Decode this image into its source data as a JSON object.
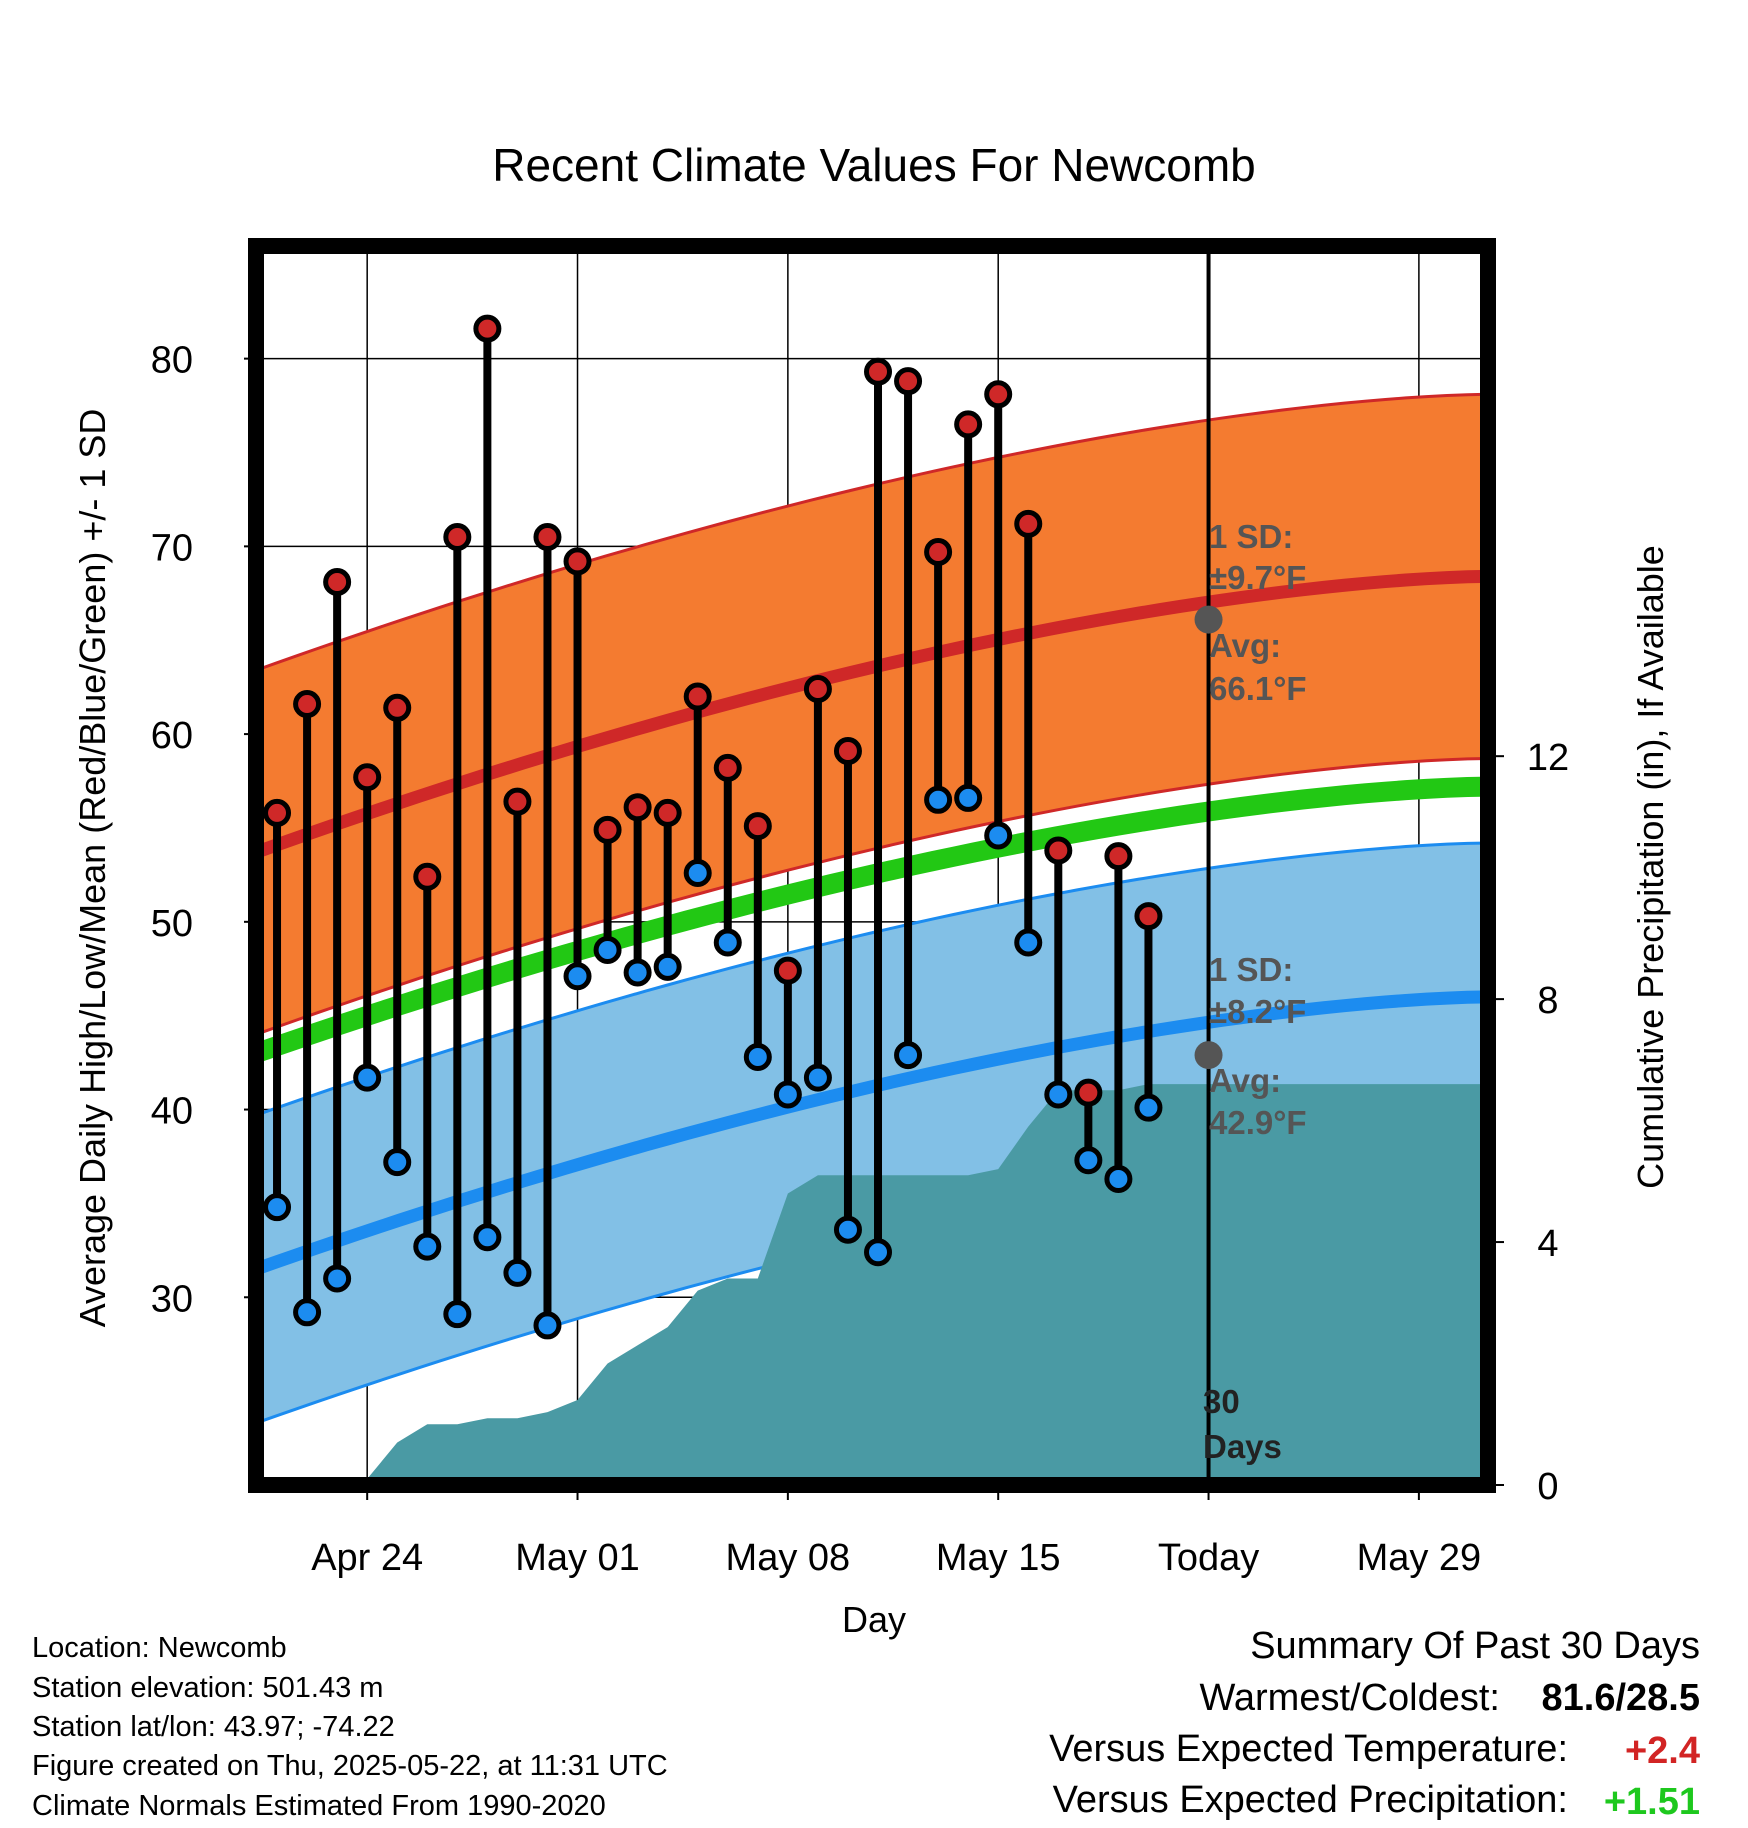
{
  "chart_data": {
    "type": "line",
    "title": "Recent Climate Values For Newcomb",
    "xlabel": "Day",
    "ylabel_left": "Average Daily High/Low/Mean (Red/Blue/Green) +/- 1 SD",
    "ylabel_right": "Cumulative Precipitation (in), If Available",
    "ylim_left": [
      20,
      86
    ],
    "ylim_right": [
      0,
      20.4
    ],
    "left_ticks": [
      30,
      40,
      50,
      60,
      70,
      80
    ],
    "right_ticks": [
      0,
      4,
      8,
      12
    ],
    "x_ticks": [
      {
        "day": 3,
        "label": "Apr 24"
      },
      {
        "day": 10,
        "label": "May 01"
      },
      {
        "day": 17,
        "label": "May 08"
      },
      {
        "day": 24,
        "label": "May 15"
      },
      {
        "day": 31,
        "label": "Today"
      },
      {
        "day": 38,
        "label": "May 29"
      }
    ],
    "x_range": [
      -0.7,
      40.3
    ],
    "today_day": 31,
    "today_label": "30\nDays",
    "normal_high": {
      "start": 53.7,
      "end": 68.4,
      "sd": 9.7,
      "today_avg": 66.1,
      "sd_label": "1 SD:",
      "sd_text": "±9.7°F",
      "avg_label": "Avg:",
      "avg_text": "66.1°F"
    },
    "normal_low": {
      "start": 31.5,
      "end": 46.0,
      "sd": 8.2,
      "today_avg": 42.9,
      "sd_label": "1 SD:",
      "sd_text": "±8.2°F",
      "avg_label": "Avg:",
      "avg_text": "42.9°F"
    },
    "normal_mean": {
      "start": 43.0,
      "end": 57.2
    },
    "daily": [
      {
        "day": 0,
        "high": 55.8,
        "low": 34.8
      },
      {
        "day": 1,
        "high": 61.6,
        "low": 29.2
      },
      {
        "day": 2,
        "high": 68.1,
        "low": 31.0
      },
      {
        "day": 3,
        "high": 57.7,
        "low": 41.7
      },
      {
        "day": 4,
        "high": 61.4,
        "low": 37.2
      },
      {
        "day": 5,
        "high": 52.4,
        "low": 32.7
      },
      {
        "day": 6,
        "high": 70.5,
        "low": 29.1
      },
      {
        "day": 7,
        "high": 81.6,
        "low": 33.2
      },
      {
        "day": 8,
        "high": 56.4,
        "low": 31.3
      },
      {
        "day": 9,
        "high": 70.5,
        "low": 28.5
      },
      {
        "day": 10,
        "high": 69.2,
        "low": 47.1
      },
      {
        "day": 11,
        "high": 54.9,
        "low": 48.5
      },
      {
        "day": 12,
        "high": 56.1,
        "low": 47.3
      },
      {
        "day": 13,
        "high": 55.8,
        "low": 47.6
      },
      {
        "day": 14,
        "high": 62.0,
        "low": 52.6
      },
      {
        "day": 15,
        "high": 58.2,
        "low": 48.9
      },
      {
        "day": 16,
        "high": 55.1,
        "low": 42.8
      },
      {
        "day": 17,
        "high": 47.4,
        "low": 40.8
      },
      {
        "day": 18,
        "high": 62.4,
        "low": 41.7
      },
      {
        "day": 19,
        "high": 59.1,
        "low": 33.6
      },
      {
        "day": 20,
        "high": 79.3,
        "low": 32.4
      },
      {
        "day": 21,
        "high": 78.8,
        "low": 42.9
      },
      {
        "day": 22,
        "high": 69.7,
        "low": 56.5
      },
      {
        "day": 23,
        "high": 76.5,
        "low": 56.6
      },
      {
        "day": 24,
        "high": 78.1,
        "low": 54.6
      },
      {
        "day": 25,
        "high": 71.2,
        "low": 48.9
      },
      {
        "day": 26,
        "high": 53.8,
        "low": 40.8
      },
      {
        "day": 27,
        "high": 40.9,
        "low": 37.3
      },
      {
        "day": 28,
        "high": 53.5,
        "low": 36.3
      },
      {
        "day": 29,
        "high": 50.3,
        "low": 40.1
      }
    ],
    "precip_cumulative": [
      {
        "day": 2,
        "value": 0.0
      },
      {
        "day": 3,
        "value": 0.1
      },
      {
        "day": 4,
        "value": 0.7
      },
      {
        "day": 5,
        "value": 1.0
      },
      {
        "day": 6,
        "value": 1.0
      },
      {
        "day": 7,
        "value": 1.1
      },
      {
        "day": 8,
        "value": 1.1
      },
      {
        "day": 9,
        "value": 1.2
      },
      {
        "day": 10,
        "value": 1.4
      },
      {
        "day": 11,
        "value": 2.0
      },
      {
        "day": 12,
        "value": 2.3
      },
      {
        "day": 13,
        "value": 2.6
      },
      {
        "day": 14,
        "value": 3.2
      },
      {
        "day": 15,
        "value": 3.4
      },
      {
        "day": 16,
        "value": 3.4
      },
      {
        "day": 17,
        "value": 4.8
      },
      {
        "day": 18,
        "value": 5.1
      },
      {
        "day": 19,
        "value": 5.1
      },
      {
        "day": 20,
        "value": 5.1
      },
      {
        "day": 21,
        "value": 5.1
      },
      {
        "day": 22,
        "value": 5.1
      },
      {
        "day": 23,
        "value": 5.1
      },
      {
        "day": 24,
        "value": 5.2
      },
      {
        "day": 25,
        "value": 5.9
      },
      {
        "day": 26,
        "value": 6.5
      },
      {
        "day": 27,
        "value": 6.5
      },
      {
        "day": 28,
        "value": 6.5
      },
      {
        "day": 29,
        "value": 6.6
      },
      {
        "day": 30,
        "value": 6.6
      },
      {
        "day": 40.3,
        "value": 6.6
      }
    ],
    "colors": {
      "high_band": "#f47b30",
      "high_line": "#cf2828",
      "low_band": "#82c0e6",
      "low_line": "#1c8cf0",
      "mean_line": "#22c814",
      "precip": "#4a9aa4",
      "high_dot": "#cf2828",
      "low_dot": "#1c8cf0",
      "avg_dot": "#555555"
    }
  },
  "info": {
    "location": "Location: Newcomb",
    "elevation": "Station elevation: 501.43 m",
    "latlon": "Station lat/lon: 43.97; -74.22",
    "created": "Figure created on Thu, 2025-05-22, at 11:31 UTC",
    "normals": "Climate Normals Estimated From 1990-2020"
  },
  "summary": {
    "title": "Summary Of Past 30 Days",
    "warmest_label": "Warmest/Coldest:",
    "warmest_value": "81.6/28.5",
    "temp_label": "Versus Expected Temperature:",
    "temp_value": "+2.4",
    "temp_color": "#d22424",
    "precip_label": "Versus Expected Precipitation:",
    "precip_value": "+1.51",
    "precip_color": "#1ec81e"
  }
}
